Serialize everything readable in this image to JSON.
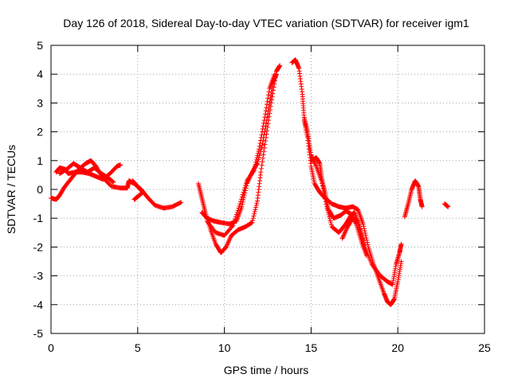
{
  "chart_data": {
    "type": "scatter",
    "title": "Day 126 of 2018, Sidereal Day-to-day VTEC variation (SDTVAR) for receiver igm1",
    "xlabel": "GPS time / hours",
    "ylabel": "SDTVAR / TECUs",
    "xlim": [
      0,
      25
    ],
    "ylim": [
      -5,
      5
    ],
    "x_ticks": [
      0,
      5,
      10,
      15,
      20,
      25
    ],
    "y_ticks": [
      -5,
      -4,
      -3,
      -2,
      -1,
      0,
      1,
      2,
      3,
      4,
      5
    ],
    "grid": true,
    "marker": "+",
    "color": "#ff0000",
    "series": [
      {
        "points": [
          [
            0,
            -0.3
          ],
          [
            0.3,
            -0.35
          ],
          [
            0.5,
            -0.2
          ],
          [
            0.8,
            0.1
          ],
          [
            1.2,
            0.4
          ],
          [
            1.6,
            0.7
          ],
          [
            2.0,
            0.9
          ],
          [
            2.3,
            1.0
          ],
          [
            2.6,
            0.8
          ],
          [
            3.0,
            0.4
          ],
          [
            3.5,
            0.1
          ],
          [
            4.0,
            0.05
          ],
          [
            4.4,
            0.05
          ],
          [
            4.5,
            0.3
          ],
          [
            4.8,
            0.2
          ],
          [
            5.2,
            0.0
          ],
          [
            5.6,
            -0.3
          ],
          [
            6.0,
            -0.55
          ],
          [
            6.5,
            -0.65
          ],
          [
            7.0,
            -0.6
          ],
          [
            7.5,
            -0.45
          ]
        ]
      },
      {
        "points": [
          [
            0.3,
            0.6
          ],
          [
            0.5,
            0.75
          ],
          [
            0.8,
            0.7
          ],
          [
            1.0,
            0.55
          ],
          [
            1.4,
            0.6
          ],
          [
            1.8,
            0.6
          ],
          [
            2.2,
            0.55
          ],
          [
            2.6,
            0.45
          ],
          [
            3.0,
            0.35
          ],
          [
            3.4,
            0.55
          ],
          [
            3.8,
            0.8
          ],
          [
            4.0,
            0.85
          ]
        ]
      },
      {
        "points": [
          [
            0.5,
            0.55
          ],
          [
            0.9,
            0.7
          ],
          [
            1.3,
            0.9
          ],
          [
            1.7,
            0.75
          ],
          [
            2.1,
            0.6
          ],
          [
            2.5,
            0.75
          ],
          [
            2.9,
            0.55
          ],
          [
            3.3,
            0.4
          ],
          [
            3.6,
            0.25
          ]
        ]
      },
      {
        "points": [
          [
            4.7,
            0.3
          ],
          [
            5.0,
            0.1
          ],
          [
            5.3,
            -0.1
          ],
          [
            5.0,
            -0.25
          ],
          [
            4.8,
            -0.35
          ]
        ]
      },
      {
        "points": [
          [
            8.5,
            0.2
          ],
          [
            8.7,
            -0.3
          ],
          [
            8.9,
            -0.8
          ],
          [
            9.2,
            -1.4
          ],
          [
            9.5,
            -1.9
          ],
          [
            9.8,
            -2.2
          ],
          [
            10.1,
            -2.0
          ],
          [
            10.4,
            -1.6
          ],
          [
            10.8,
            -1.4
          ],
          [
            11.2,
            -1.3
          ],
          [
            11.6,
            -1.15
          ],
          [
            11.9,
            -0.4
          ],
          [
            12.1,
            0.6
          ],
          [
            12.4,
            1.8
          ],
          [
            12.7,
            3.0
          ],
          [
            13.0,
            4.1
          ],
          [
            13.2,
            4.3
          ]
        ]
      },
      {
        "points": [
          [
            8.7,
            -0.8
          ],
          [
            9.0,
            -1.0
          ],
          [
            9.4,
            -1.1
          ],
          [
            9.8,
            -1.15
          ],
          [
            10.3,
            -1.2
          ],
          [
            10.7,
            -1.1
          ],
          [
            11.0,
            -0.6
          ],
          [
            11.3,
            0.2
          ],
          [
            11.6,
            0.6
          ],
          [
            11.9,
            0.9
          ],
          [
            12.2,
            1.6
          ],
          [
            12.5,
            2.6
          ],
          [
            12.8,
            3.7
          ],
          [
            13.0,
            4.0
          ]
        ]
      },
      {
        "points": [
          [
            9.0,
            -1.1
          ],
          [
            9.5,
            -1.5
          ],
          [
            10.0,
            -1.6
          ],
          [
            10.5,
            -1.25
          ],
          [
            10.9,
            -0.5
          ],
          [
            11.3,
            0.3
          ],
          [
            11.7,
            0.65
          ],
          [
            12.0,
            1.4
          ],
          [
            12.3,
            2.4
          ],
          [
            12.6,
            3.5
          ],
          [
            12.9,
            4.0
          ]
        ]
      },
      {
        "points": [
          [
            13.9,
            4.4
          ],
          [
            14.1,
            4.5
          ],
          [
            14.3,
            4.2
          ],
          [
            14.5,
            3.3
          ],
          [
            14.6,
            2.5
          ],
          [
            14.8,
            2.0
          ],
          [
            15.0,
            1.2
          ],
          [
            15.3,
            0.8
          ],
          [
            15.6,
            0.3
          ],
          [
            15.9,
            -0.6
          ],
          [
            16.2,
            -1.3
          ],
          [
            16.6,
            -1.5
          ],
          [
            17.0,
            -1.2
          ],
          [
            17.3,
            -0.9
          ],
          [
            17.5,
            -0.8
          ],
          [
            17.8,
            -1.3
          ],
          [
            18.1,
            -2.0
          ],
          [
            18.5,
            -2.6
          ],
          [
            19.0,
            -3.0
          ],
          [
            19.4,
            -3.2
          ],
          [
            19.7,
            -3.3
          ],
          [
            19.9,
            -2.6
          ],
          [
            20.1,
            -2.2
          ],
          [
            20.2,
            -1.9
          ]
        ]
      },
      {
        "points": [
          [
            14.6,
            2.4
          ],
          [
            14.8,
            1.8
          ],
          [
            15.0,
            0.8
          ],
          [
            15.2,
            0.2
          ],
          [
            15.5,
            -0.1
          ],
          [
            15.8,
            -0.3
          ],
          [
            16.2,
            -0.5
          ],
          [
            16.6,
            -0.6
          ],
          [
            17.0,
            -0.65
          ],
          [
            17.4,
            -0.6
          ],
          [
            17.7,
            -0.7
          ],
          [
            18.0,
            -1.2
          ],
          [
            18.3,
            -2.0
          ],
          [
            18.6,
            -2.6
          ],
          [
            18.9,
            -3.1
          ],
          [
            19.2,
            -3.6
          ],
          [
            19.4,
            -3.9
          ],
          [
            19.6,
            -4.0
          ],
          [
            19.8,
            -3.8
          ],
          [
            20.0,
            -3.2
          ],
          [
            20.2,
            -2.5
          ]
        ]
      },
      {
        "points": [
          [
            15.0,
            1.0
          ],
          [
            15.3,
            1.1
          ],
          [
            15.5,
            0.9
          ],
          [
            15.6,
            0.4
          ],
          [
            15.8,
            -0.1
          ],
          [
            16.0,
            -0.7
          ],
          [
            16.3,
            -1.0
          ],
          [
            16.7,
            -0.9
          ],
          [
            17.0,
            -0.75
          ],
          [
            17.3,
            -0.85
          ],
          [
            17.6,
            -1.2
          ],
          [
            17.9,
            -1.8
          ],
          [
            18.2,
            -2.3
          ]
        ]
      },
      {
        "points": [
          [
            16.8,
            -1.7
          ],
          [
            17.1,
            -1.3
          ],
          [
            17.4,
            -1.0
          ],
          [
            17.7,
            -1.1
          ],
          [
            17.9,
            -1.6
          ],
          [
            18.1,
            -2.1
          ]
        ]
      },
      {
        "points": [
          [
            20.4,
            -0.95
          ],
          [
            20.6,
            -0.5
          ],
          [
            20.8,
            0.0
          ],
          [
            21.0,
            0.3
          ],
          [
            21.2,
            0.1
          ],
          [
            21.3,
            -0.35
          ],
          [
            21.4,
            -0.6
          ]
        ]
      },
      {
        "points": [
          [
            22.7,
            -0.5
          ],
          [
            22.9,
            -0.6
          ]
        ]
      }
    ]
  }
}
